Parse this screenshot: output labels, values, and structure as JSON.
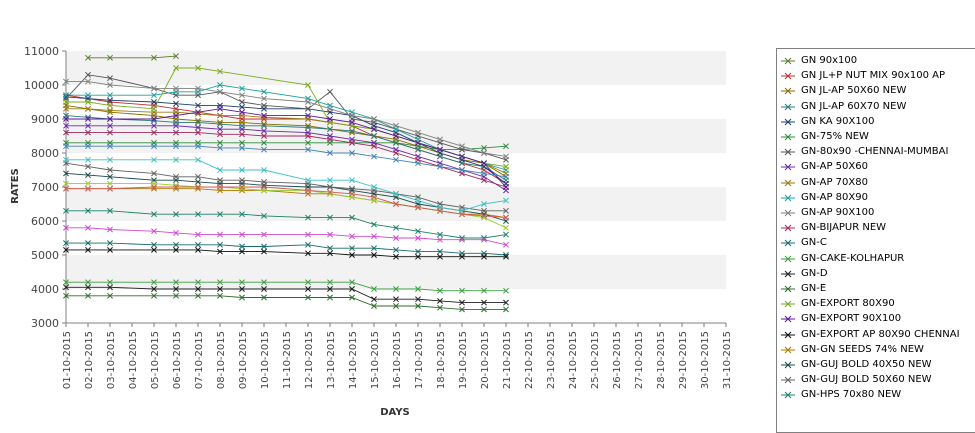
{
  "chart_data": {
    "type": "line",
    "title": "",
    "xlabel": "DAYS",
    "ylabel": "RATES",
    "ylim": [
      3000,
      11000
    ],
    "yticks": [
      3000,
      4000,
      5000,
      6000,
      7000,
      8000,
      9000,
      10000,
      11000
    ],
    "grid": "alternating horizontal bands",
    "legend": "right",
    "categories": [
      "01-10-2015",
      "02-10-2015",
      "03-10-2015",
      "04-10-2015",
      "05-10-2015",
      "06-10-2015",
      "07-10-2015",
      "08-10-2015",
      "09-10-2015",
      "10-10-2015",
      "11-10-2015",
      "12-10-2015",
      "13-10-2015",
      "14-10-2015",
      "15-10-2015",
      "16-10-2015",
      "17-10-2015",
      "18-10-2015",
      "19-10-2015",
      "20-10-2015",
      "21-10-2015",
      "22-10-2015",
      "23-10-2015",
      "24-10-2015",
      "25-10-2015",
      "26-10-2015",
      "27-10-2015",
      "28-10-2015",
      "29-10-2015",
      "30-10-2015",
      "31-10-2015"
    ],
    "series": [
      {
        "name": "GN 90x100",
        "color": "#5a7d2a",
        "values": [
          null,
          10800,
          10800,
          null,
          10800,
          10850,
          null,
          null,
          null,
          null,
          null,
          null,
          null,
          null,
          null,
          null,
          null,
          null,
          null,
          null,
          null,
          null,
          null,
          null,
          null,
          null,
          null,
          null,
          null,
          null,
          null
        ]
      },
      {
        "name": "GN JL+P NUT MIX 90x100 AP",
        "color": "#c03030",
        "values": [
          9700,
          9600,
          9500,
          null,
          9400,
          9300,
          9200,
          9100,
          9000,
          9000,
          null,
          9000,
          8900,
          8800,
          8500,
          8300,
          8100,
          7900,
          7700,
          7500,
          7100,
          null,
          null,
          null,
          null,
          null,
          null,
          null,
          null,
          null,
          null
        ]
      },
      {
        "name": "GN JL-AP 50X60 NEW",
        "color": "#8a6d00",
        "values": [
          9400,
          9300,
          9200,
          null,
          9100,
          9000,
          8950,
          8900,
          8900,
          8850,
          null,
          8800,
          8700,
          8600,
          8500,
          8400,
          8200,
          8000,
          7800,
          7700,
          7300,
          null,
          null,
          null,
          null,
          null,
          null,
          null,
          null,
          null,
          null
        ]
      },
      {
        "name": "GN JL-AP 60X70 NEW",
        "color": "#2a7a7a",
        "values": [
          9100,
          9050,
          9000,
          null,
          8950,
          8900,
          8900,
          8850,
          8800,
          8800,
          null,
          8750,
          8700,
          8650,
          8500,
          8300,
          8100,
          7900,
          7700,
          7600,
          7200,
          null,
          null,
          null,
          null,
          null,
          null,
          null,
          null,
          null,
          null
        ]
      },
      {
        "name": "GN KA 90X100",
        "color": "#1c3f6e",
        "values": [
          9650,
          9600,
          9550,
          null,
          9500,
          9450,
          9400,
          9400,
          9350,
          9300,
          null,
          9300,
          9200,
          9100,
          8800,
          8600,
          8300,
          8000,
          7800,
          7600,
          7100,
          null,
          null,
          null,
          null,
          null,
          null,
          null,
          null,
          null,
          null
        ]
      },
      {
        "name": "GN-75% NEW",
        "color": "#2e8b3a",
        "values": [
          8300,
          8300,
          8300,
          null,
          8300,
          8300,
          8300,
          8300,
          8300,
          8300,
          null,
          8300,
          8300,
          8300,
          8300,
          8300,
          8200,
          8100,
          8100,
          8150,
          8200,
          null,
          null,
          null,
          null,
          null,
          null,
          null,
          null,
          null,
          null
        ]
      },
      {
        "name": "GN-80x90 -CHENNAI-MUMBAI",
        "color": "#555555",
        "values": [
          9600,
          10300,
          10200,
          null,
          9900,
          9700,
          9700,
          9800,
          9500,
          9400,
          null,
          9300,
          9800,
          9000,
          8900,
          8700,
          8500,
          8300,
          8100,
          8000,
          7800,
          null,
          null,
          null,
          null,
          null,
          null,
          null,
          null,
          null,
          null
        ]
      },
      {
        "name": "GN-AP 50X60",
        "color": "#6a2aa8",
        "values": [
          8800,
          8800,
          8800,
          null,
          8800,
          8800,
          8750,
          8700,
          8700,
          8650,
          null,
          8600,
          8500,
          8400,
          8300,
          8100,
          7900,
          7700,
          7500,
          7300,
          6900,
          null,
          null,
          null,
          null,
          null,
          null,
          null,
          null,
          null,
          null
        ]
      },
      {
        "name": "GN-AP 70X80",
        "color": "#9a7a10",
        "values": [
          9300,
          9300,
          9250,
          null,
          9200,
          9200,
          9150,
          9100,
          9100,
          9050,
          null,
          9000,
          8900,
          8800,
          8700,
          8500,
          8300,
          8100,
          7900,
          7700,
          7400,
          null,
          null,
          null,
          null,
          null,
          null,
          null,
          null,
          null,
          null
        ]
      },
      {
        "name": "GN-AP 80X90",
        "color": "#20a0a0",
        "values": [
          9700,
          9700,
          9700,
          null,
          9700,
          9800,
          9800,
          10000,
          9900,
          9800,
          null,
          9600,
          9400,
          9200,
          9000,
          8700,
          8400,
          8100,
          7900,
          7700,
          7500,
          null,
          null,
          null,
          null,
          null,
          null,
          null,
          null,
          null,
          null
        ]
      },
      {
        "name": "GN-AP 90X100",
        "color": "#808080",
        "values": [
          10100,
          10100,
          10000,
          null,
          9900,
          9900,
          9900,
          9800,
          9700,
          9600,
          null,
          9500,
          9300,
          9100,
          9000,
          8800,
          8600,
          8400,
          8200,
          8000,
          7900,
          null,
          null,
          null,
          null,
          null,
          null,
          null,
          null,
          null,
          null
        ]
      },
      {
        "name": "GN-BIJAPUR NEW",
        "color": "#a02860",
        "values": [
          8600,
          8600,
          8600,
          null,
          8600,
          8600,
          8600,
          8550,
          8550,
          8500,
          null,
          8500,
          8400,
          8300,
          8200,
          8000,
          7800,
          7600,
          7400,
          7200,
          7000,
          null,
          null,
          null,
          null,
          null,
          null,
          null,
          null,
          null,
          null
        ]
      },
      {
        "name": "GN-C",
        "color": "#1a6b6b",
        "values": [
          5350,
          5350,
          5350,
          null,
          5300,
          5300,
          5300,
          5300,
          5250,
          5250,
          null,
          5300,
          5200,
          5200,
          5200,
          5150,
          5100,
          5100,
          5050,
          5050,
          5000,
          null,
          null,
          null,
          null,
          null,
          null,
          null,
          null,
          null,
          null
        ]
      },
      {
        "name": "GN-CAKE-KOLHAPUR",
        "color": "#3aa040",
        "values": [
          4200,
          4200,
          4200,
          null,
          4200,
          4200,
          4200,
          4200,
          4200,
          4200,
          null,
          4200,
          4200,
          4200,
          4000,
          4000,
          4000,
          3950,
          3950,
          3950,
          3950,
          null,
          null,
          null,
          null,
          null,
          null,
          null,
          null,
          null,
          null
        ]
      },
      {
        "name": "GN-D",
        "color": "#202020",
        "values": [
          4050,
          4050,
          4050,
          null,
          4000,
          4000,
          4000,
          4000,
          4000,
          4000,
          null,
          4000,
          4000,
          4000,
          3700,
          3700,
          3700,
          3650,
          3600,
          3600,
          3600,
          null,
          null,
          null,
          null,
          null,
          null,
          null,
          null,
          null,
          null
        ]
      },
      {
        "name": "GN-E",
        "color": "#2d6e2d",
        "values": [
          3800,
          3800,
          3800,
          null,
          3800,
          3800,
          3800,
          3800,
          3750,
          3750,
          null,
          3750,
          3750,
          3750,
          3500,
          3500,
          3500,
          3450,
          3400,
          3400,
          3400,
          null,
          null,
          null,
          null,
          null,
          null,
          null,
          null,
          null,
          null
        ]
      },
      {
        "name": "GN-EXPORT 80X90",
        "color": "#7aaa20",
        "values": [
          9500,
          9500,
          9400,
          null,
          9300,
          10500,
          10500,
          10400,
          null,
          null,
          null,
          10000,
          8900,
          8800,
          8700,
          8500,
          8300,
          8100,
          7900,
          7700,
          7600,
          null,
          null,
          null,
          null,
          null,
          null,
          null,
          null,
          null,
          null
        ]
      },
      {
        "name": "GN-EXPORT 90X100",
        "color": "#5a1a9a",
        "values": [
          9000,
          9000,
          9000,
          null,
          9000,
          9100,
          9200,
          9300,
          9200,
          9100,
          null,
          9100,
          9000,
          8900,
          8700,
          8500,
          8300,
          8100,
          7900,
          7700,
          7000,
          null,
          null,
          null,
          null,
          null,
          null,
          null,
          null,
          null,
          null
        ]
      },
      {
        "name": "GN-EXPORT AP 80X90 CHENNAI",
        "color": "#101010",
        "values": [
          5150,
          5150,
          5150,
          null,
          5150,
          5150,
          5150,
          5100,
          5100,
          5100,
          null,
          5050,
          5050,
          5000,
          5000,
          4950,
          4950,
          4950,
          4950,
          4950,
          4950,
          null,
          null,
          null,
          null,
          null,
          null,
          null,
          null,
          null,
          null
        ]
      },
      {
        "name": "GN-GN SEEDS 74% NEW",
        "color": "#b07a00",
        "values": [
          6950,
          6950,
          6950,
          null,
          6950,
          6950,
          6950,
          6900,
          6900,
          6900,
          null,
          6800,
          6800,
          6700,
          6600,
          6500,
          6400,
          6300,
          6200,
          6200,
          6100,
          null,
          null,
          null,
          null,
          null,
          null,
          null,
          null,
          null,
          null
        ]
      },
      {
        "name": "GN-GUJ BOLD 40X50 NEW",
        "color": "#1a4a4a",
        "values": [
          7400,
          7350,
          7300,
          null,
          7200,
          7200,
          7150,
          7100,
          7100,
          7050,
          null,
          7000,
          7000,
          6900,
          6800,
          6700,
          6500,
          6400,
          6300,
          6200,
          6000,
          null,
          null,
          null,
          null,
          null,
          null,
          null,
          null,
          null,
          null
        ]
      },
      {
        "name": "GN-GUJ BOLD 50X60 NEW",
        "color": "#606060",
        "values": [
          7700,
          7600,
          7500,
          null,
          7400,
          7300,
          7300,
          7200,
          7200,
          7150,
          null,
          7100,
          7000,
          6950,
          6900,
          6800,
          6700,
          6500,
          6400,
          6300,
          6300,
          null,
          null,
          null,
          null,
          null,
          null,
          null,
          null,
          null,
          null
        ]
      },
      {
        "name": "GN-HPS  70x80 NEW",
        "color": "#20806a",
        "values": [
          6300,
          6300,
          6300,
          null,
          6200,
          6200,
          6200,
          6200,
          6200,
          6150,
          null,
          6100,
          6100,
          6100,
          5900,
          5800,
          5700,
          5600,
          5500,
          5500,
          5600,
          null,
          null,
          null,
          null,
          null,
          null,
          null,
          null,
          null,
          null
        ]
      },
      {
        "name": "",
        "color": "#d048d0",
        "values": [
          5800,
          5800,
          5750,
          null,
          5700,
          5650,
          5600,
          5600,
          5600,
          5600,
          null,
          5600,
          5600,
          5550,
          5550,
          5500,
          5500,
          5450,
          5450,
          5450,
          5300,
          null,
          null,
          null,
          null,
          null,
          null,
          null,
          null,
          null,
          null
        ]
      },
      {
        "name": "",
        "color": "#40c0c0",
        "values": [
          7800,
          7800,
          7800,
          null,
          7800,
          7800,
          7800,
          7500,
          7500,
          7500,
          null,
          7200,
          7200,
          7200,
          7000,
          6800,
          6600,
          6400,
          6300,
          6500,
          6600,
          null,
          null,
          null,
          null,
          null,
          null,
          null,
          null,
          null,
          null
        ]
      },
      {
        "name": "",
        "color": "#9acd32",
        "values": [
          7100,
          7100,
          7100,
          null,
          7100,
          7050,
          7000,
          7000,
          6950,
          6900,
          null,
          6900,
          6800,
          6700,
          6600,
          6500,
          6400,
          6300,
          6200,
          6100,
          5800,
          null,
          null,
          null,
          null,
          null,
          null,
          null,
          null,
          null,
          null
        ]
      },
      {
        "name": "",
        "color": "#cd5c5c",
        "values": [
          6950,
          6950,
          6950,
          null,
          7000,
          7000,
          7000,
          7000,
          7000,
          7000,
          null,
          6900,
          6850,
          6800,
          6700,
          6500,
          6400,
          6300,
          6200,
          6150,
          6100,
          null,
          null,
          null,
          null,
          null,
          null,
          null,
          null,
          null,
          null
        ]
      },
      {
        "name": "",
        "color": "#4682b4",
        "values": [
          8200,
          8200,
          8200,
          null,
          8200,
          8200,
          8200,
          8150,
          8150,
          8100,
          null,
          8100,
          8000,
          8000,
          7900,
          7800,
          7700,
          7600,
          7500,
          7400,
          7300,
          null,
          null,
          null,
          null,
          null,
          null,
          null,
          null,
          null,
          null
        ]
      }
    ]
  }
}
